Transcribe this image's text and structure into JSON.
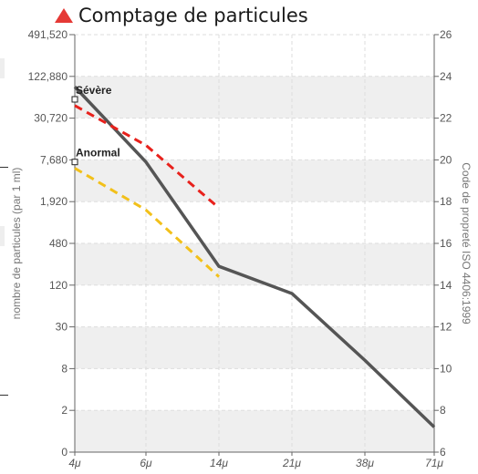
{
  "header": {
    "title": "Comptage de particules",
    "icon": "warning-triangle-icon"
  },
  "colors": {
    "measured": "#555555",
    "severe": "#e8211c",
    "abnormal": "#f2c01a",
    "band": "#efefef",
    "grid": "#dddddd"
  },
  "chart_data": {
    "type": "line",
    "title": "Comptage de particules",
    "x_categories": [
      "4μ",
      "6μ",
      "14μ",
      "21μ",
      "38μ",
      "71μ"
    ],
    "left_axis": {
      "label": "nombre de particules (par 1 ml)",
      "scale": "log2",
      "ticks": [
        "0",
        "2",
        "8",
        "30",
        "120",
        "480",
        "1,920",
        "7,680",
        "30,720",
        "122,880",
        "491,520"
      ]
    },
    "right_axis": {
      "label": "Code de propreté ISO 4406:1999",
      "range": [
        6,
        26
      ],
      "ticks": [
        "6",
        "8",
        "10",
        "12",
        "14",
        "16",
        "18",
        "20",
        "22",
        "24",
        "26"
      ]
    },
    "series": [
      {
        "key": "measured",
        "style": "solid",
        "points": [
          [
            0,
            23.5
          ],
          [
            1,
            19.9
          ],
          [
            2,
            14.9
          ],
          [
            3,
            13.6
          ],
          [
            4,
            10.4
          ],
          [
            5,
            7.2
          ]
        ]
      },
      {
        "key": "severe",
        "name": "Sévère",
        "style": "dashed",
        "points": [
          [
            0,
            22.6
          ],
          [
            1,
            20.7
          ],
          [
            2,
            17.7
          ]
        ]
      },
      {
        "key": "abnormal",
        "name": "Anormal",
        "style": "dashed",
        "points": [
          [
            0,
            19.6
          ],
          [
            1,
            17.6
          ],
          [
            2,
            14.4
          ]
        ]
      }
    ],
    "annotations": [
      {
        "text": "Sévère",
        "x": 0,
        "y": 22.9
      },
      {
        "text": "Anormal",
        "x": 0,
        "y": 19.9
      }
    ],
    "grid": true
  }
}
